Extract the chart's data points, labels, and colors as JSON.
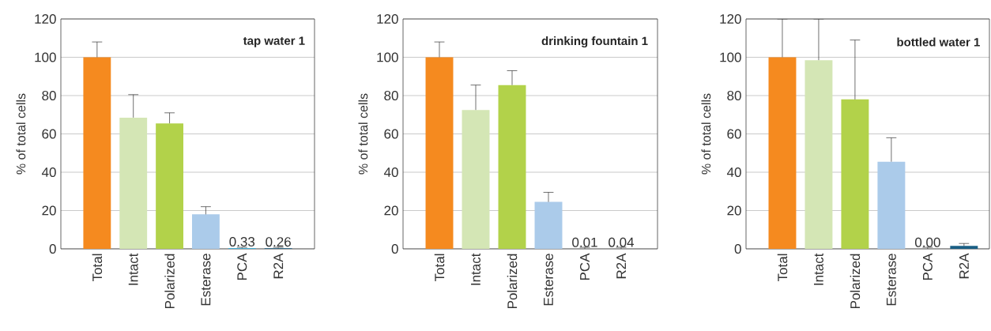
{
  "chart_data": [
    {
      "type": "bar",
      "title": "tap water 1",
      "ylabel": "% of total cells",
      "categories": [
        "Total",
        "Intact",
        "Polarized",
        "Esterase",
        "PCA",
        "R2A"
      ],
      "values": [
        100,
        68.5,
        65.5,
        18,
        0.33,
        0.26
      ],
      "colors": [
        "#f58a1f",
        "#d4e6b5",
        "#b2d24a",
        "#abcbea",
        "#29b6e8",
        "#1a5f85"
      ],
      "errors": [
        [
          100,
          108
        ],
        [
          68.5,
          80.5
        ],
        [
          65.5,
          71
        ],
        [
          18,
          22
        ],
        [
          0.33,
          0.8
        ],
        [
          0.26,
          0.8
        ]
      ],
      "value_labels": [
        null,
        null,
        null,
        null,
        "0.33",
        "0.26"
      ],
      "ylim": [
        0,
        120
      ],
      "yticks": [
        0,
        20,
        40,
        60,
        80,
        100,
        120
      ],
      "grid": "y"
    },
    {
      "type": "bar",
      "title": "drinking fountain 1",
      "ylabel": "% of total cells",
      "categories": [
        "Total",
        "Intact",
        "Polarized",
        "Esterase",
        "PCA",
        "R2A"
      ],
      "values": [
        100,
        72.5,
        85.5,
        24.5,
        0.01,
        0.04
      ],
      "colors": [
        "#f58a1f",
        "#d4e6b5",
        "#b2d24a",
        "#abcbea",
        "#29b6e8",
        "#1a5f85"
      ],
      "errors": [
        [
          100,
          108
        ],
        [
          72.5,
          85.5
        ],
        [
          85.5,
          93
        ],
        [
          24.5,
          29.5
        ],
        [
          0.01,
          0.8
        ],
        [
          0.04,
          0.8
        ]
      ],
      "value_labels": [
        null,
        null,
        null,
        null,
        "0.01",
        "0.04"
      ],
      "ylim": [
        0,
        120
      ],
      "yticks": [
        0,
        20,
        40,
        60,
        80,
        100,
        120
      ],
      "grid": "y"
    },
    {
      "type": "bar",
      "title": "bottled water 1",
      "ylabel": "% of total cells",
      "categories": [
        "Total",
        "Intact",
        "Polarized",
        "Esterase",
        "PCA",
        "R2A"
      ],
      "values": [
        100,
        98.5,
        78,
        45.5,
        0.0,
        1.5
      ],
      "colors": [
        "#f58a1f",
        "#d4e6b5",
        "#b2d24a",
        "#abcbea",
        "#29b6e8",
        "#1a5f85"
      ],
      "errors": [
        [
          100,
          120
        ],
        [
          98.5,
          120
        ],
        [
          78,
          109
        ],
        [
          45.5,
          58
        ],
        [
          0.0,
          0.8
        ],
        [
          1.5,
          2.8
        ]
      ],
      "value_labels": [
        null,
        null,
        null,
        null,
        "0.00",
        null
      ],
      "ylim": [
        0,
        120
      ],
      "yticks": [
        0,
        20,
        40,
        60,
        80,
        100,
        120
      ],
      "grid": "y"
    }
  ]
}
